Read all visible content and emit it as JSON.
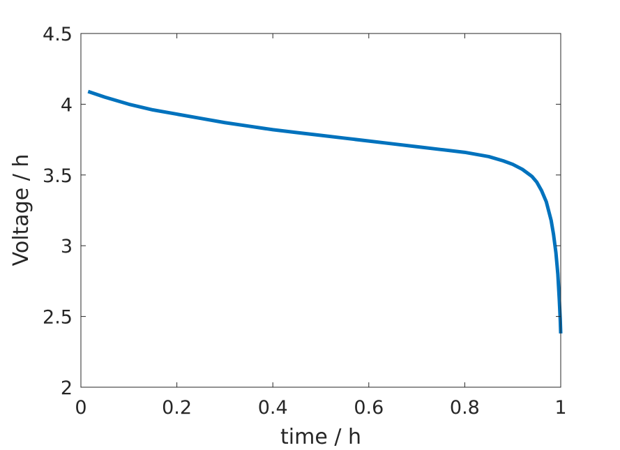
{
  "chart_data": {
    "type": "line",
    "xlabel": "time / h",
    "ylabel": "Voltage / h",
    "xlim": [
      0,
      1
    ],
    "ylim": [
      2,
      4.5
    ],
    "xticks": [
      "0",
      "0.2",
      "0.4",
      "0.6",
      "0.8",
      "1"
    ],
    "yticks": [
      "2",
      "2.5",
      "3",
      "3.5",
      "4",
      "4.5"
    ],
    "grid": false,
    "legend": "none",
    "series": [
      {
        "color": "#0072BD",
        "x": [
          0.015,
          0.05,
          0.1,
          0.15,
          0.2,
          0.25,
          0.3,
          0.35,
          0.4,
          0.45,
          0.5,
          0.55,
          0.6,
          0.65,
          0.7,
          0.75,
          0.8,
          0.85,
          0.88,
          0.9,
          0.92,
          0.94,
          0.95,
          0.96,
          0.97,
          0.98,
          0.985,
          0.99,
          0.994,
          0.997,
          0.999,
          1.0
        ],
        "y": [
          4.09,
          4.05,
          4.0,
          3.96,
          3.93,
          3.9,
          3.87,
          3.845,
          3.82,
          3.8,
          3.78,
          3.76,
          3.74,
          3.72,
          3.7,
          3.68,
          3.66,
          3.63,
          3.6,
          3.575,
          3.54,
          3.49,
          3.45,
          3.39,
          3.31,
          3.18,
          3.08,
          2.95,
          2.8,
          2.62,
          2.48,
          2.38
        ]
      }
    ]
  }
}
